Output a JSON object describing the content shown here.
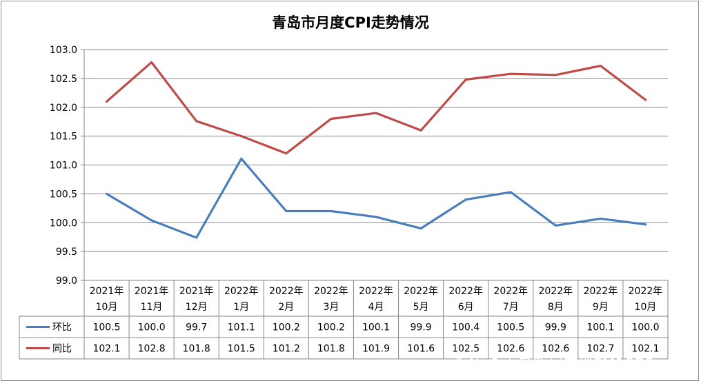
{
  "chart_data": {
    "type": "line",
    "title": "青岛市月度CPI走势情况",
    "ylim": [
      99.0,
      103.0
    ],
    "y_ticks": [
      "99.0",
      "99.5",
      "100.0",
      "100.5",
      "101.0",
      "101.5",
      "102.0",
      "102.5",
      "103.0"
    ],
    "grid": true,
    "legend_placement": "data-table-left",
    "categories": [
      [
        "2021年",
        "10月"
      ],
      [
        "2021年",
        "11月"
      ],
      [
        "2021年",
        "12月"
      ],
      [
        "2022年",
        "1月"
      ],
      [
        "2022年",
        "2月"
      ],
      [
        "2022年",
        "3月"
      ],
      [
        "2022年",
        "4月"
      ],
      [
        "2022年",
        "5月"
      ],
      [
        "2022年",
        "6月"
      ],
      [
        "2022年",
        "7月"
      ],
      [
        "2022年",
        "8月"
      ],
      [
        "2022年",
        "9月"
      ],
      [
        "2022年",
        "10月"
      ]
    ],
    "series": [
      {
        "name": "环比",
        "color": "#4a7ebb",
        "values": [
          100.5,
          100.04,
          99.74,
          101.11,
          100.2,
          100.2,
          100.1,
          99.9,
          100.4,
          100.53,
          99.95,
          100.07,
          99.97
        ],
        "labels": [
          "100.5",
          "100.0",
          "99.7",
          "101.1",
          "100.2",
          "100.2",
          "100.1",
          "99.9",
          "100.4",
          "100.5",
          "99.9",
          "100.1",
          "100.0"
        ]
      },
      {
        "name": "同比",
        "color": "#be4b48",
        "values": [
          102.1,
          102.78,
          101.76,
          101.5,
          101.2,
          101.8,
          101.9,
          101.6,
          102.48,
          102.58,
          102.56,
          102.72,
          102.13
        ],
        "labels": [
          "102.1",
          "102.8",
          "101.8",
          "101.5",
          "101.2",
          "101.8",
          "101.9",
          "101.6",
          "102.5",
          "102.6",
          "102.6",
          "102.7",
          "102.1"
        ]
      }
    ]
  },
  "watermark": "头条 @青岛新闻广播FM1076"
}
